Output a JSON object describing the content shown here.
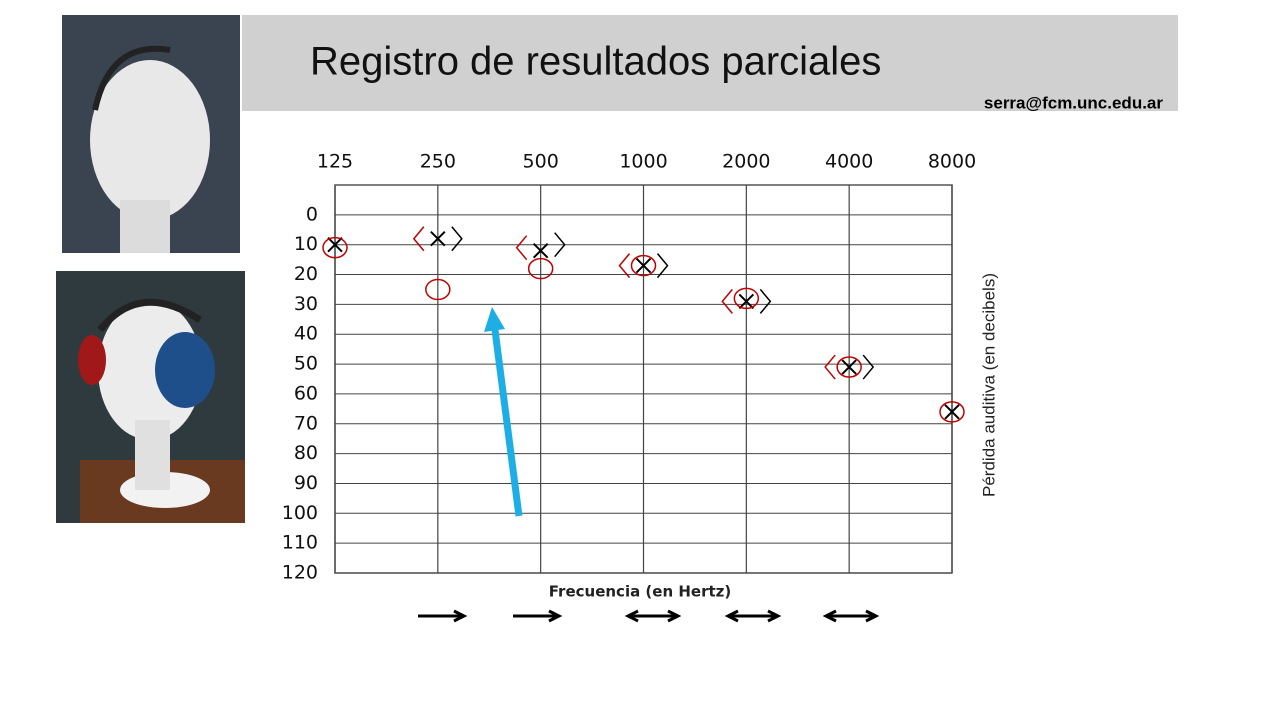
{
  "slide": {
    "title": "Registro  de resultados parciales",
    "email": "serra@fcm.unc.edu.ar"
  },
  "chart_data": {
    "type": "audiogram",
    "categories": [
      "125",
      "250",
      "500",
      "1000",
      "2000",
      "4000",
      "8000"
    ],
    "xlabel": "Frecuencia (en Hertz)",
    "ylabel": "Pérdida auditiva (en decibels)",
    "ylim": [
      -10,
      120
    ],
    "y_inverted": true,
    "yticks": [
      0,
      10,
      20,
      30,
      40,
      50,
      60,
      70,
      80,
      90,
      100,
      110,
      120
    ],
    "grid": true,
    "series": [
      {
        "marker": "x",
        "color": "#000000",
        "values": [
          10,
          8,
          12,
          17,
          29,
          51,
          66
        ]
      },
      {
        "marker": "o",
        "color": "#c00000",
        "values": [
          11,
          25,
          18,
          17,
          28,
          51,
          66
        ]
      },
      {
        "marker": "<",
        "color": "#c00000",
        "values": [
          null,
          8,
          11,
          17,
          29,
          51,
          null
        ]
      },
      {
        "marker": ">",
        "color": "#000000",
        "values": [
          null,
          8,
          10,
          17,
          29,
          51,
          null
        ]
      }
    ]
  }
}
